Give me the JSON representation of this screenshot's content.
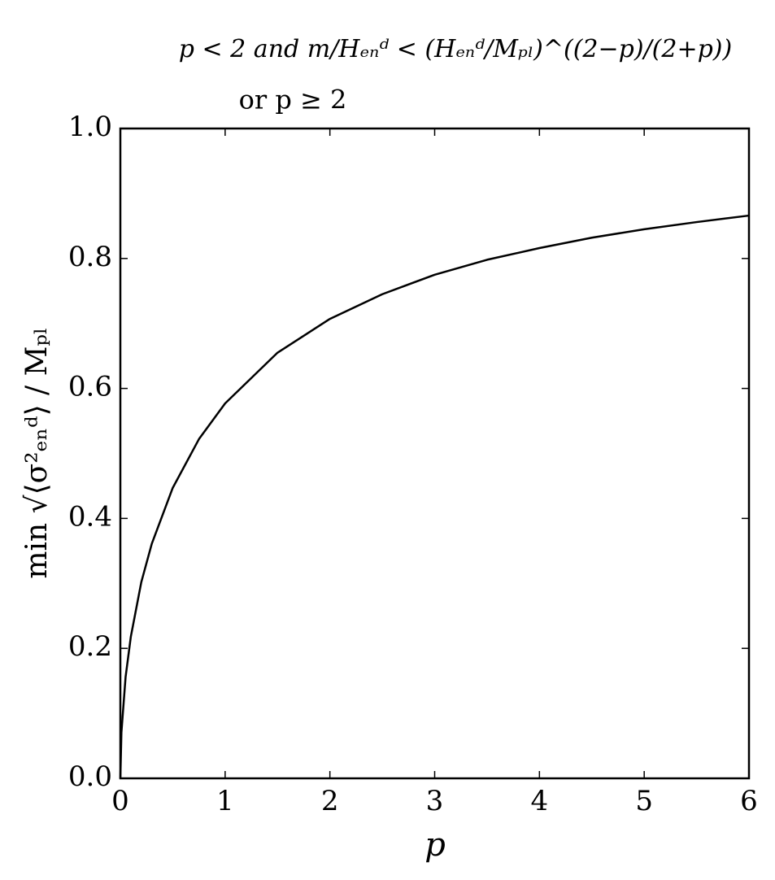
{
  "chart_data": {
    "type": "line",
    "title_lines": [
      "p < 2 and m/Hₑₙᵈ < (Hₑₙᵈ/Mₚₗ)^((2−p)/(2+p))",
      "or p ≥ 2"
    ],
    "xlabel": "p",
    "ylabel": "min √⟨σ²ₑₙᵈ⟩ / Mₚₗ",
    "x": [
      0,
      0.01,
      0.05,
      0.1,
      0.2,
      0.3,
      0.5,
      0.75,
      1,
      1.5,
      2,
      2.5,
      3,
      3.5,
      4,
      4.5,
      5,
      5.5,
      6
    ],
    "values": [
      0,
      0.0705,
      0.156,
      0.218,
      0.302,
      0.361,
      0.447,
      0.522,
      0.577,
      0.655,
      0.707,
      0.745,
      0.775,
      0.798,
      0.816,
      0.832,
      0.845,
      0.856,
      0.866
    ],
    "color": "#000000",
    "xlim": [
      0,
      6
    ],
    "xticks": [
      0,
      1,
      2,
      3,
      4,
      5,
      6
    ],
    "ylim": [
      0,
      1
    ],
    "yticks": [
      {
        "value": 0,
        "label": "0.0"
      },
      0.2,
      0.4,
      0.6,
      0.8,
      {
        "value": 1,
        "label": "1.0"
      }
    ],
    "grid": false
  }
}
